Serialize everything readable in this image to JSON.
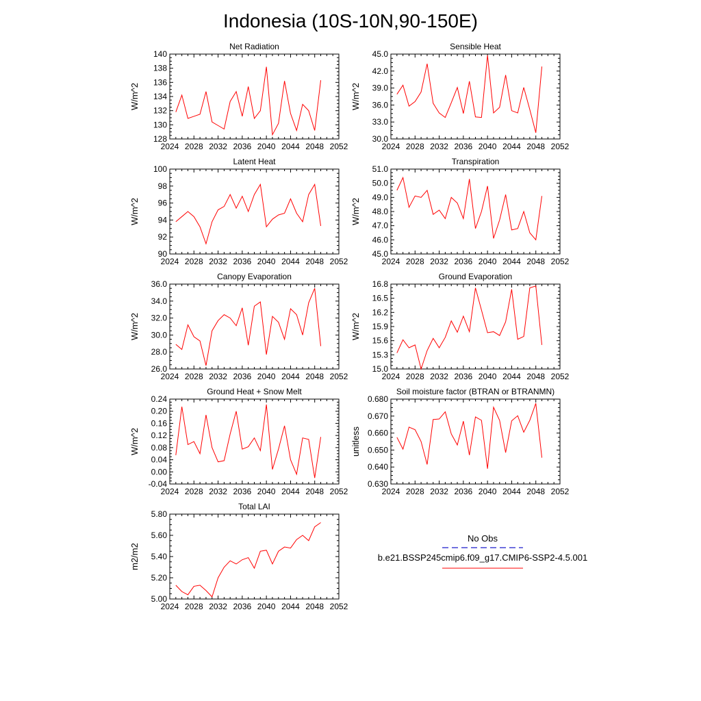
{
  "figure": {
    "title": "Indonesia (10S-10N,90-150E)"
  },
  "legend": {
    "entries": [
      {
        "label": "No Obs",
        "color": "#1a1acc",
        "dash": true
      },
      {
        "label": "b.e21.BSSP245cmip6.f09_g17.CMIP6-SSP2-4.5.001",
        "color": "#ff0000",
        "dash": false
      }
    ]
  },
  "chart_data": [
    {
      "type": "line",
      "title": "Net Radiation",
      "ylabel": "W/m^2",
      "xlim": [
        2024,
        2052
      ],
      "ylim": [
        128,
        140
      ],
      "xticks": [
        2024,
        2028,
        2032,
        2036,
        2040,
        2044,
        2048,
        2052
      ],
      "xtick_labels": [
        "2024",
        "2028",
        "2032",
        "2036",
        "2040",
        "2044",
        "2048",
        "2052"
      ],
      "yticks": [
        128,
        130,
        132,
        134,
        136,
        138,
        140
      ],
      "ytick_labels": [
        "128",
        "130",
        "132",
        "134",
        "136",
        "138",
        "140"
      ],
      "x": [
        2025,
        2026,
        2027,
        2028,
        2029,
        2030,
        2031,
        2032,
        2033,
        2034,
        2035,
        2036,
        2037,
        2038,
        2039,
        2040,
        2041,
        2042,
        2043,
        2044,
        2045,
        2046,
        2047,
        2048,
        2049
      ],
      "series": [
        {
          "name": "b.e21.BSSP245cmip6.f09_g17.CMIP6-SSP2-4.5.001",
          "color": "#ff0000",
          "values": [
            131.8,
            134.2,
            130.9,
            131.2,
            131.5,
            134.7,
            130.4,
            129.9,
            129.4,
            133.3,
            134.7,
            131.2,
            135.4,
            130.9,
            132.0,
            138.2,
            128.6,
            130.2,
            136.2,
            131.6,
            129.2,
            132.9,
            132.0,
            129.2,
            136.3
          ]
        }
      ]
    },
    {
      "type": "line",
      "title": "Sensible Heat",
      "ylabel": "W/m^2",
      "xlim": [
        2024,
        2052
      ],
      "ylim": [
        30,
        45
      ],
      "xticks": [
        2024,
        2028,
        2032,
        2036,
        2040,
        2044,
        2048,
        2052
      ],
      "xtick_labels": [
        "2024",
        "2028",
        "2032",
        "2036",
        "2040",
        "2044",
        "2048",
        "2052"
      ],
      "yticks": [
        30,
        33,
        36,
        39,
        42,
        45
      ],
      "ytick_labels": [
        "30.0",
        "33.0",
        "36.0",
        "39.0",
        "42.0",
        "45.0"
      ],
      "x": [
        2025,
        2026,
        2027,
        2028,
        2029,
        2030,
        2031,
        2032,
        2033,
        2034,
        2035,
        2036,
        2037,
        2038,
        2039,
        2040,
        2041,
        2042,
        2043,
        2044,
        2045,
        2046,
        2047,
        2048,
        2049
      ],
      "series": [
        {
          "name": "b.e21.BSSP245cmip6.f09_g17.CMIP6-SSP2-4.5.001",
          "color": "#ff0000",
          "values": [
            37.9,
            39.5,
            35.8,
            36.6,
            38.3,
            43.3,
            36.3,
            34.6,
            33.8,
            36.4,
            39.1,
            34.5,
            40.2,
            33.9,
            33.8,
            44.8,
            34.6,
            35.6,
            41.3,
            35.0,
            34.6,
            39.1,
            35.2,
            31.1,
            42.8
          ]
        }
      ]
    },
    {
      "type": "line",
      "title": "Latent Heat",
      "ylabel": "W/m^2",
      "xlim": [
        2024,
        2052
      ],
      "ylim": [
        90,
        100
      ],
      "xticks": [
        2024,
        2028,
        2032,
        2036,
        2040,
        2044,
        2048,
        2052
      ],
      "xtick_labels": [
        "2024",
        "2028",
        "2032",
        "2036",
        "2040",
        "2044",
        "2048",
        "2052"
      ],
      "yticks": [
        90,
        92,
        94,
        96,
        98,
        100
      ],
      "ytick_labels": [
        "90",
        "92",
        "94",
        "96",
        "98",
        "100"
      ],
      "x": [
        2025,
        2026,
        2027,
        2028,
        2029,
        2030,
        2031,
        2032,
        2033,
        2034,
        2035,
        2036,
        2037,
        2038,
        2039,
        2040,
        2041,
        2042,
        2043,
        2044,
        2045,
        2046,
        2047,
        2048,
        2049
      ],
      "series": [
        {
          "name": "b.e21.BSSP245cmip6.f09_g17.CMIP6-SSP2-4.5.001",
          "color": "#ff0000",
          "values": [
            93.8,
            94.4,
            95.0,
            94.4,
            93.2,
            91.2,
            93.8,
            95.2,
            95.6,
            97.0,
            95.4,
            96.8,
            95.0,
            97.0,
            98.2,
            93.2,
            94.1,
            94.6,
            94.8,
            96.5,
            94.8,
            93.8,
            97.0,
            98.2,
            93.3
          ]
        }
      ]
    },
    {
      "type": "line",
      "title": "Transpiration",
      "ylabel": "W/m^2",
      "xlim": [
        2024,
        2052
      ],
      "ylim": [
        45,
        51
      ],
      "xticks": [
        2024,
        2028,
        2032,
        2036,
        2040,
        2044,
        2048,
        2052
      ],
      "xtick_labels": [
        "2024",
        "2028",
        "2032",
        "2036",
        "2040",
        "2044",
        "2048",
        "2052"
      ],
      "yticks": [
        45,
        46,
        47,
        48,
        49,
        50,
        51
      ],
      "ytick_labels": [
        "45.0",
        "46.0",
        "47.0",
        "48.0",
        "49.0",
        "50.0",
        "51.0"
      ],
      "x": [
        2025,
        2026,
        2027,
        2028,
        2029,
        2030,
        2031,
        2032,
        2033,
        2034,
        2035,
        2036,
        2037,
        2038,
        2039,
        2040,
        2041,
        2042,
        2043,
        2044,
        2045,
        2046,
        2047,
        2048,
        2049
      ],
      "series": [
        {
          "name": "b.e21.BSSP245cmip6.f09_g17.CMIP6-SSP2-4.5.001",
          "color": "#ff0000",
          "values": [
            49.5,
            50.4,
            48.3,
            49.1,
            49.0,
            49.5,
            47.8,
            48.1,
            47.5,
            49.0,
            48.6,
            47.5,
            50.3,
            46.8,
            48.0,
            49.8,
            46.1,
            47.4,
            49.2,
            46.7,
            46.8,
            48.0,
            46.5,
            46.0,
            49.1
          ]
        }
      ]
    },
    {
      "type": "line",
      "title": "Canopy Evaporation",
      "ylabel": "W/m^2",
      "xlim": [
        2024,
        2052
      ],
      "ylim": [
        26,
        36
      ],
      "xticks": [
        2024,
        2028,
        2032,
        2036,
        2040,
        2044,
        2048,
        2052
      ],
      "xtick_labels": [
        "2024",
        "2028",
        "2032",
        "2036",
        "2040",
        "2044",
        "2048",
        "2052"
      ],
      "yticks": [
        26,
        28,
        30,
        32,
        34,
        36
      ],
      "ytick_labels": [
        "26.0",
        "28.0",
        "30.0",
        "32.0",
        "34.0",
        "36.0"
      ],
      "x": [
        2025,
        2026,
        2027,
        2028,
        2029,
        2030,
        2031,
        2032,
        2033,
        2034,
        2035,
        2036,
        2037,
        2038,
        2039,
        2040,
        2041,
        2042,
        2043,
        2044,
        2045,
        2046,
        2047,
        2048,
        2049
      ],
      "series": [
        {
          "name": "b.e21.BSSP245cmip6.f09_g17.CMIP6-SSP2-4.5.001",
          "color": "#ff0000",
          "values": [
            28.9,
            28.3,
            31.2,
            29.8,
            29.3,
            26.4,
            30.5,
            31.7,
            32.4,
            32.0,
            31.1,
            33.2,
            28.8,
            33.4,
            33.9,
            27.7,
            32.2,
            31.5,
            29.5,
            33.1,
            32.4,
            30.0,
            33.8,
            35.5,
            28.7
          ]
        }
      ]
    },
    {
      "type": "line",
      "title": "Ground Evaporation",
      "ylabel": "W/m^2",
      "xlim": [
        2024,
        2052
      ],
      "ylim": [
        15.0,
        16.8
      ],
      "xticks": [
        2024,
        2028,
        2032,
        2036,
        2040,
        2044,
        2048,
        2052
      ],
      "xtick_labels": [
        "2024",
        "2028",
        "2032",
        "2036",
        "2040",
        "2044",
        "2048",
        "2052"
      ],
      "yticks": [
        15.0,
        15.3,
        15.6,
        15.9,
        16.2,
        16.5,
        16.8
      ],
      "ytick_labels": [
        "15.0",
        "15.3",
        "15.6",
        "15.9",
        "16.2",
        "16.5",
        "16.8"
      ],
      "x": [
        2025,
        2026,
        2027,
        2028,
        2029,
        2030,
        2031,
        2032,
        2033,
        2034,
        2035,
        2036,
        2037,
        2038,
        2039,
        2040,
        2041,
        2042,
        2043,
        2044,
        2045,
        2046,
        2047,
        2048,
        2049
      ],
      "series": [
        {
          "name": "b.e21.BSSP245cmip6.f09_g17.CMIP6-SSP2-4.5.001",
          "color": "#ff0000",
          "values": [
            15.34,
            15.62,
            15.45,
            15.51,
            15.0,
            15.39,
            15.65,
            15.45,
            15.67,
            16.02,
            15.78,
            16.12,
            15.79,
            16.72,
            16.25,
            15.77,
            15.79,
            15.71,
            16.0,
            16.69,
            15.63,
            15.69,
            16.72,
            16.76,
            15.51
          ]
        }
      ]
    },
    {
      "type": "line",
      "title": "Ground Heat + Snow Melt",
      "ylabel": "W/m^2",
      "xlim": [
        2024,
        2052
      ],
      "ylim": [
        -0.04,
        0.24
      ],
      "xticks": [
        2024,
        2028,
        2032,
        2036,
        2040,
        2044,
        2048,
        2052
      ],
      "xtick_labels": [
        "2024",
        "2028",
        "2032",
        "2036",
        "2040",
        "2044",
        "2048",
        "2052"
      ],
      "yticks": [
        -0.04,
        0.0,
        0.04,
        0.08,
        0.12,
        0.16,
        0.2,
        0.24
      ],
      "ytick_labels": [
        "-0.04",
        "0.00",
        "0.04",
        "0.08",
        "0.12",
        "0.16",
        "0.20",
        "0.24"
      ],
      "x": [
        2025,
        2026,
        2027,
        2028,
        2029,
        2030,
        2031,
        2032,
        2033,
        2034,
        2035,
        2036,
        2037,
        2038,
        2039,
        2040,
        2041,
        2042,
        2043,
        2044,
        2045,
        2046,
        2047,
        2048,
        2049
      ],
      "series": [
        {
          "name": "b.e21.BSSP245cmip6.f09_g17.CMIP6-SSP2-4.5.001",
          "color": "#ff0000",
          "values": [
            0.055,
            0.215,
            0.09,
            0.1,
            0.06,
            0.188,
            0.08,
            0.033,
            0.037,
            0.125,
            0.2,
            0.075,
            0.083,
            0.112,
            0.07,
            0.222,
            0.008,
            0.075,
            0.152,
            0.04,
            -0.008,
            0.112,
            0.107,
            -0.02,
            0.115
          ]
        }
      ]
    },
    {
      "type": "line",
      "title": "Soil moisture factor (BTRAN or BTRANMN)",
      "ylabel": "unitless",
      "xlim": [
        2024,
        2052
      ],
      "ylim": [
        0.63,
        0.68
      ],
      "xticks": [
        2024,
        2028,
        2032,
        2036,
        2040,
        2044,
        2048,
        2052
      ],
      "xtick_labels": [
        "2024",
        "2028",
        "2032",
        "2036",
        "2040",
        "2044",
        "2048",
        "2052"
      ],
      "yticks": [
        0.63,
        0.64,
        0.65,
        0.66,
        0.67,
        0.68
      ],
      "ytick_labels": [
        "0.630",
        "0.640",
        "0.650",
        "0.660",
        "0.670",
        "0.680"
      ],
      "x": [
        2025,
        2026,
        2027,
        2028,
        2029,
        2030,
        2031,
        2032,
        2033,
        2034,
        2035,
        2036,
        2037,
        2038,
        2039,
        2040,
        2041,
        2042,
        2043,
        2044,
        2045,
        2046,
        2047,
        2048,
        2049
      ],
      "series": [
        {
          "name": "b.e21.BSSP245cmip6.f09_g17.CMIP6-SSP2-4.5.001",
          "color": "#ff0000",
          "values": [
            0.6575,
            0.6505,
            0.6635,
            0.662,
            0.655,
            0.6415,
            0.668,
            0.6683,
            0.6725,
            0.6595,
            0.653,
            0.667,
            0.647,
            0.6695,
            0.6675,
            0.639,
            0.6752,
            0.6675,
            0.6485,
            0.6672,
            0.6702,
            0.6605,
            0.6675,
            0.6775,
            0.6455
          ]
        }
      ]
    },
    {
      "type": "line",
      "title": "Total LAI",
      "ylabel": "m2/m2",
      "xlim": [
        2024,
        2052
      ],
      "ylim": [
        5.0,
        5.8
      ],
      "xticks": [
        2024,
        2028,
        2032,
        2036,
        2040,
        2044,
        2048,
        2052
      ],
      "xtick_labels": [
        "2024",
        "2028",
        "2032",
        "2036",
        "2040",
        "2044",
        "2048",
        "2052"
      ],
      "yticks": [
        5.0,
        5.2,
        5.4,
        5.6,
        5.8
      ],
      "ytick_labels": [
        "5.00",
        "5.20",
        "5.40",
        "5.60",
        "5.80"
      ],
      "x": [
        2025,
        2026,
        2027,
        2028,
        2029,
        2030,
        2031,
        2032,
        2033,
        2034,
        2035,
        2036,
        2037,
        2038,
        2039,
        2040,
        2041,
        2042,
        2043,
        2044,
        2045,
        2046,
        2047,
        2048,
        2049
      ],
      "series": [
        {
          "name": "b.e21.BSSP245cmip6.f09_g17.CMIP6-SSP2-4.5.001",
          "color": "#ff0000",
          "values": [
            5.13,
            5.07,
            5.04,
            5.12,
            5.13,
            5.08,
            5.02,
            5.2,
            5.3,
            5.36,
            5.33,
            5.37,
            5.39,
            5.29,
            5.45,
            5.46,
            5.33,
            5.45,
            5.49,
            5.48,
            5.56,
            5.6,
            5.55,
            5.68,
            5.72
          ]
        }
      ]
    }
  ]
}
